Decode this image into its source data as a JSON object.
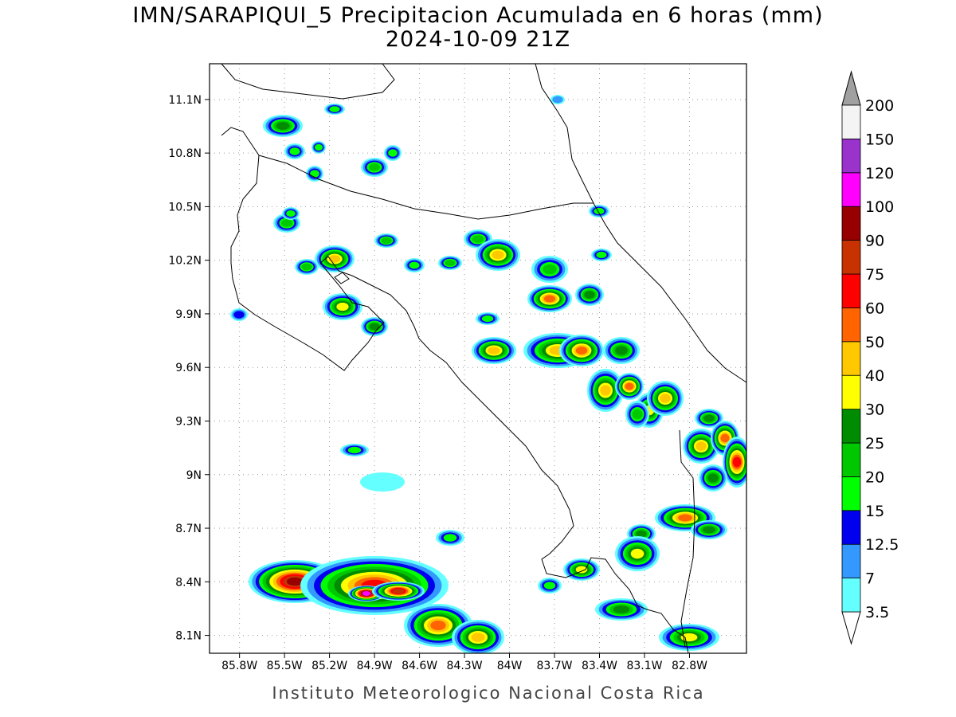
{
  "header": {
    "title": "IMN/SARAPIQUI_5 Precipitacion Acumulada en 6 horas (mm)",
    "subtitle": "2024-10-09 21Z"
  },
  "map": {
    "xlim": [
      -86.0,
      -82.42
    ],
    "ylim": [
      8.0,
      11.3
    ],
    "xticks": [
      {
        "value": -85.8,
        "label": "85.8W"
      },
      {
        "value": -85.5,
        "label": "85.5W"
      },
      {
        "value": -85.2,
        "label": "85.2W"
      },
      {
        "value": -84.9,
        "label": "84.9W"
      },
      {
        "value": -84.6,
        "label": "84.6W"
      },
      {
        "value": -84.3,
        "label": "84.3W"
      },
      {
        "value": -84.0,
        "label": "84W"
      },
      {
        "value": -83.7,
        "label": "83.7W"
      },
      {
        "value": -83.4,
        "label": "83.4W"
      },
      {
        "value": -83.1,
        "label": "83.1W"
      },
      {
        "value": -82.8,
        "label": "82.8W"
      }
    ],
    "yticks": [
      {
        "value": 8.1,
        "label": "8.1N"
      },
      {
        "value": 8.4,
        "label": "8.4N"
      },
      {
        "value": 8.7,
        "label": "8.7N"
      },
      {
        "value": 9.0,
        "label": "9N"
      },
      {
        "value": 9.3,
        "label": "9.3N"
      },
      {
        "value": 9.6,
        "label": "9.6N"
      },
      {
        "value": 9.9,
        "label": "9.9N"
      },
      {
        "value": 10.2,
        "label": "10.2N"
      },
      {
        "value": 10.5,
        "label": "10.5N"
      },
      {
        "value": 10.8,
        "label": "10.8N"
      },
      {
        "value": 11.1,
        "label": "11.1N"
      }
    ],
    "grid": true
  },
  "colorbar": {
    "levels": [
      3.5,
      7,
      12.5,
      15,
      20,
      25,
      30,
      40,
      50,
      60,
      75,
      90,
      100,
      120,
      150,
      200
    ],
    "colors": [
      "#ffffff",
      "#64ffff",
      "#3399ff",
      "#0000ee",
      "#00ff00",
      "#00c800",
      "#008c00",
      "#ffff00",
      "#ffc800",
      "#ff6400",
      "#ff0000",
      "#c83200",
      "#960000",
      "#ff00ff",
      "#9933cc",
      "#f4f4f4",
      "#a0a0a0"
    ]
  },
  "footer": "Instituto Meteorologico Nacional Costa Rica"
}
